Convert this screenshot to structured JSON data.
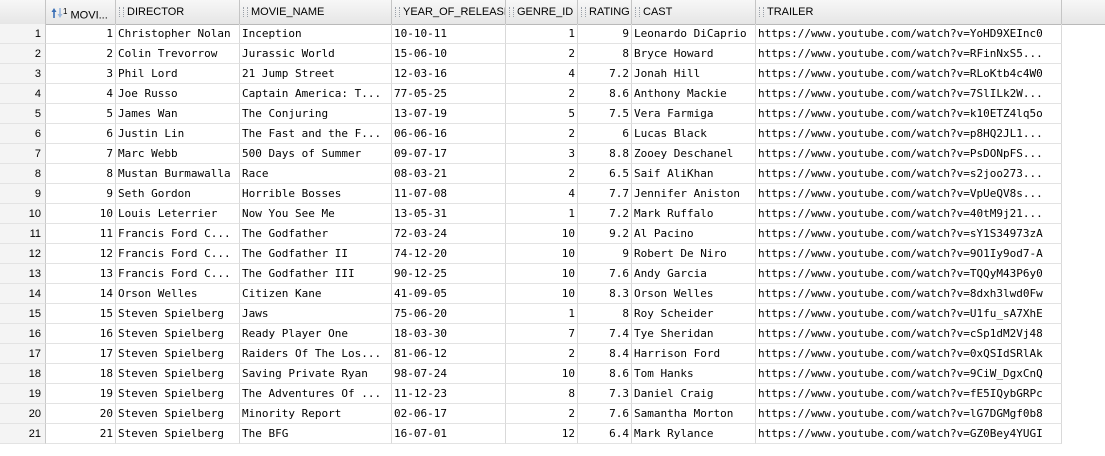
{
  "table": {
    "sort_badge": "1",
    "columns": [
      "MOVI...",
      "DIRECTOR",
      "MOVIE_NAME",
      "YEAR_OF_RELEASE",
      "GENRE_ID",
      "RATING",
      "CAST",
      "TRAILER"
    ],
    "rows": [
      {
        "n": "1",
        "movie_id": "1",
        "director": "Christopher Nolan",
        "movie_name": "Inception",
        "year": "10-10-11",
        "genre_id": "1",
        "rating": "9",
        "cast": "Leonardo DiCaprio",
        "trailer": "https://www.youtube.com/watch?v=YoHD9XEInc0"
      },
      {
        "n": "2",
        "movie_id": "2",
        "director": "Colin Trevorrow",
        "movie_name": "Jurassic World",
        "year": "15-06-10",
        "genre_id": "2",
        "rating": "8",
        "cast": "Bryce Howard",
        "trailer": "https://www.youtube.com/watch?v=RFinNxS5..."
      },
      {
        "n": "3",
        "movie_id": "3",
        "director": "Phil Lord",
        "movie_name": "21 Jump Street",
        "year": "12-03-16",
        "genre_id": "4",
        "rating": "7.2",
        "cast": "Jonah Hill",
        "trailer": "https://www.youtube.com/watch?v=RLoKtb4c4W0"
      },
      {
        "n": "4",
        "movie_id": "4",
        "director": "Joe Russo",
        "movie_name": "Captain America: T...",
        "year": "77-05-25",
        "genre_id": "2",
        "rating": "8.6",
        "cast": "Anthony Mackie",
        "trailer": "https://www.youtube.com/watch?v=7SlILk2W..."
      },
      {
        "n": "5",
        "movie_id": "5",
        "director": "James Wan",
        "movie_name": "The Conjuring",
        "year": "13-07-19",
        "genre_id": "5",
        "rating": "7.5",
        "cast": "Vera Farmiga",
        "trailer": "https://www.youtube.com/watch?v=k10ETZ4lq5o"
      },
      {
        "n": "6",
        "movie_id": "6",
        "director": "Justin Lin",
        "movie_name": "The Fast and the F...",
        "year": "06-06-16",
        "genre_id": "2",
        "rating": "6",
        "cast": "Lucas Black",
        "trailer": "https://www.youtube.com/watch?v=p8HQ2JL1..."
      },
      {
        "n": "7",
        "movie_id": "7",
        "director": "Marc Webb",
        "movie_name": "500 Days of Summer",
        "year": "09-07-17",
        "genre_id": "3",
        "rating": "8.8",
        "cast": "Zooey Deschanel",
        "trailer": "https://www.youtube.com/watch?v=PsDONpFS..."
      },
      {
        "n": "8",
        "movie_id": "8",
        "director": "Mustan Burmawalla",
        "movie_name": "Race",
        "year": "08-03-21",
        "genre_id": "2",
        "rating": "6.5",
        "cast": "Saif AliKhan",
        "trailer": "https://www.youtube.com/watch?v=s2joo273..."
      },
      {
        "n": "9",
        "movie_id": "9",
        "director": "Seth Gordon",
        "movie_name": "Horrible Bosses",
        "year": "11-07-08",
        "genre_id": "4",
        "rating": "7.7",
        "cast": "Jennifer Aniston",
        "trailer": "https://www.youtube.com/watch?v=VpUeQV8s..."
      },
      {
        "n": "10",
        "movie_id": "10",
        "director": "Louis Leterrier",
        "movie_name": "Now You See Me",
        "year": "13-05-31",
        "genre_id": "1",
        "rating": "7.2",
        "cast": "Mark Ruffalo",
        "trailer": "https://www.youtube.com/watch?v=40tM9j21..."
      },
      {
        "n": "11",
        "movie_id": "11",
        "director": "Francis Ford C...",
        "movie_name": "The Godfather",
        "year": "72-03-24",
        "genre_id": "10",
        "rating": "9.2",
        "cast": "Al Pacino",
        "trailer": "https://www.youtube.com/watch?v=sY1S34973zA"
      },
      {
        "n": "12",
        "movie_id": "12",
        "director": "Francis Ford C...",
        "movie_name": "The Godfather II",
        "year": "74-12-20",
        "genre_id": "10",
        "rating": "9",
        "cast": "Robert De Niro",
        "trailer": "https://www.youtube.com/watch?v=9O1Iy9od7-A"
      },
      {
        "n": "13",
        "movie_id": "13",
        "director": "Francis Ford C...",
        "movie_name": "The Godfather III",
        "year": "90-12-25",
        "genre_id": "10",
        "rating": "7.6",
        "cast": "Andy Garcia",
        "trailer": "https://www.youtube.com/watch?v=TQQyM43P6y0"
      },
      {
        "n": "14",
        "movie_id": "14",
        "director": "Orson Welles",
        "movie_name": "Citizen Kane",
        "year": "41-09-05",
        "genre_id": "10",
        "rating": "8.3",
        "cast": "Orson Welles",
        "trailer": "https://www.youtube.com/watch?v=8dxh3lwd0Fw"
      },
      {
        "n": "15",
        "movie_id": "15",
        "director": "Steven Spielberg",
        "movie_name": "Jaws",
        "year": "75-06-20",
        "genre_id": "1",
        "rating": "8",
        "cast": "Roy Scheider",
        "trailer": "https://www.youtube.com/watch?v=U1fu_sA7XhE"
      },
      {
        "n": "16",
        "movie_id": "16",
        "director": "Steven Spielberg",
        "movie_name": "Ready Player One",
        "year": "18-03-30",
        "genre_id": "7",
        "rating": "7.4",
        "cast": "Tye Sheridan",
        "trailer": "https://www.youtube.com/watch?v=cSp1dM2Vj48"
      },
      {
        "n": "17",
        "movie_id": "17",
        "director": "Steven Spielberg",
        "movie_name": "Raiders Of The Los...",
        "year": "81-06-12",
        "genre_id": "2",
        "rating": "8.4",
        "cast": "Harrison Ford",
        "trailer": "https://www.youtube.com/watch?v=0xQSIdSRlAk"
      },
      {
        "n": "18",
        "movie_id": "18",
        "director": "Steven Spielberg",
        "movie_name": "Saving Private Ryan",
        "year": "98-07-24",
        "genre_id": "10",
        "rating": "8.6",
        "cast": "Tom Hanks",
        "trailer": "https://www.youtube.com/watch?v=9CiW_DgxCnQ"
      },
      {
        "n": "19",
        "movie_id": "19",
        "director": "Steven Spielberg",
        "movie_name": "The Adventures Of ...",
        "year": "11-12-23",
        "genre_id": "8",
        "rating": "7.3",
        "cast": "Daniel Craig",
        "trailer": "https://www.youtube.com/watch?v=fE5IQybGRPc"
      },
      {
        "n": "20",
        "movie_id": "20",
        "director": "Steven Spielberg",
        "movie_name": "Minority Report",
        "year": "02-06-17",
        "genre_id": "2",
        "rating": "7.6",
        "cast": "Samantha Morton",
        "trailer": "https://www.youtube.com/watch?v=lG7DGMgf0b8"
      },
      {
        "n": "21",
        "movie_id": "21",
        "director": "Steven Spielberg",
        "movie_name": "The BFG",
        "year": "16-07-01",
        "genre_id": "12",
        "rating": "6.4",
        "cast": "Mark Rylance",
        "trailer": "https://www.youtube.com/watch?v=GZ0Bey4YUGI"
      }
    ]
  }
}
